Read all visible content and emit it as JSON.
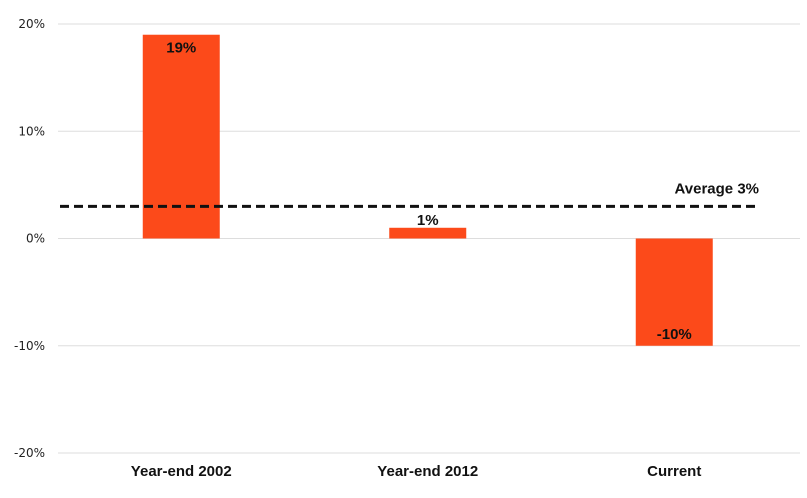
{
  "chart_data": {
    "type": "bar",
    "categories": [
      "Year-end 2002",
      "Year-end 2012",
      "Current"
    ],
    "values": [
      19,
      1,
      -10
    ],
    "data_labels": [
      "19%",
      "1%",
      "-10%"
    ],
    "ylim": [
      -20,
      20
    ],
    "yticks": [
      20,
      10,
      0,
      -10,
      -20
    ],
    "ytick_labels": [
      "20%",
      "10%",
      "0%",
      "-10%",
      "-20%"
    ],
    "grid": true,
    "reference_line": {
      "value": 3,
      "label": "Average 3%",
      "style": "dashed"
    },
    "title": "",
    "xlabel": "",
    "ylabel": ""
  },
  "colors": {
    "bar": "#fc4a1a",
    "grid": "#dddddd",
    "reference_line": "#111111"
  }
}
